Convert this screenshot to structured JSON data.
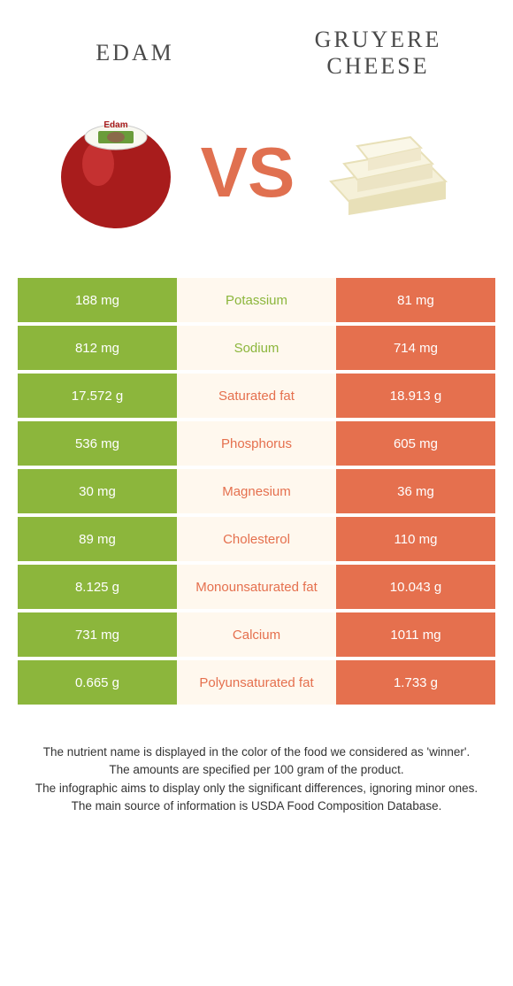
{
  "header": {
    "left_title": "EDAM",
    "right_title": "GRUYERE CHEESE"
  },
  "vs_text": "VS",
  "colors": {
    "left": "#8cb63c",
    "right": "#e5704e",
    "mid_bg": "#fff8ee",
    "vs": "#e07050",
    "edam_red": "#a81c1c",
    "edam_highlight": "#d84040",
    "gruyere_fill": "#f5f0d8",
    "gruyere_edge": "#e8e0b8"
  },
  "rows": [
    {
      "label": "Potassium",
      "left": "188 mg",
      "right": "81 mg",
      "winner": "left"
    },
    {
      "label": "Sodium",
      "left": "812 mg",
      "right": "714 mg",
      "winner": "left"
    },
    {
      "label": "Saturated fat",
      "left": "17.572 g",
      "right": "18.913 g",
      "winner": "right"
    },
    {
      "label": "Phosphorus",
      "left": "536 mg",
      "right": "605 mg",
      "winner": "right"
    },
    {
      "label": "Magnesium",
      "left": "30 mg",
      "right": "36 mg",
      "winner": "right"
    },
    {
      "label": "Cholesterol",
      "left": "89 mg",
      "right": "110 mg",
      "winner": "right"
    },
    {
      "label": "Monounsaturated fat",
      "left": "8.125 g",
      "right": "10.043 g",
      "winner": "right"
    },
    {
      "label": "Calcium",
      "left": "731 mg",
      "right": "1011 mg",
      "winner": "right"
    },
    {
      "label": "Polyunsaturated fat",
      "left": "0.665 g",
      "right": "1.733 g",
      "winner": "right"
    }
  ],
  "footer": {
    "line1": "The nutrient name is displayed in the color of the food we considered as 'winner'.",
    "line2": "The amounts are specified per 100 gram of the product.",
    "line3": "The infographic aims to display only the significant differences, ignoring minor ones.",
    "line4": "The main source of information is USDA Food Composition Database."
  }
}
